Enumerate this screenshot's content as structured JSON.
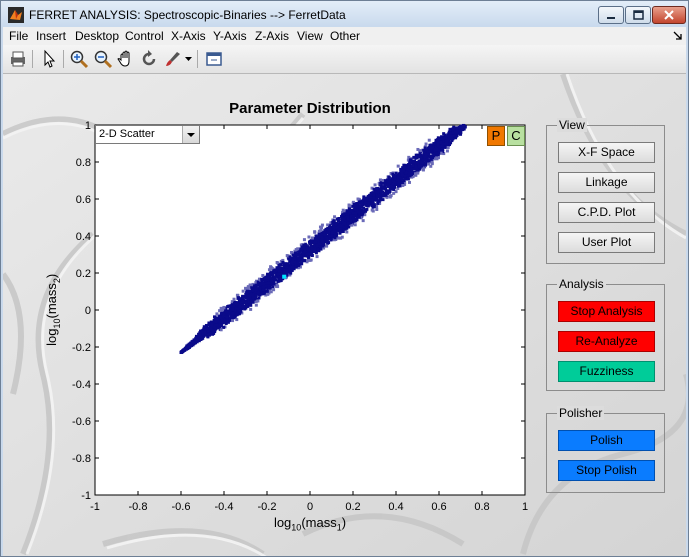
{
  "window": {
    "title": "FERRET ANALYSIS: Spectroscopic-Binaries --> FerretData"
  },
  "menu": [
    "File",
    "Insert",
    "Desktop",
    "Control",
    "X-Axis",
    "Y-Axis",
    "Z-Axis",
    "View",
    "Other"
  ],
  "toolbar": {
    "icons": [
      "print-icon",
      "pointer-icon",
      "zoom-in-icon",
      "zoom-out-icon",
      "pan-hand-icon",
      "rotate-icon",
      "brush-icon",
      "dock-icon"
    ]
  },
  "plot": {
    "type_selector_value": "2-D Scatter",
    "p_label": "P",
    "c_label": "C"
  },
  "view_panel": {
    "title": "View",
    "buttons": [
      "X-F Space",
      "Linkage",
      "C.P.D. Plot",
      "User Plot"
    ]
  },
  "analysis_panel": {
    "title": "Analysis",
    "buttons": [
      "Stop Analysis",
      "Re-Analyze",
      "Fuzziness"
    ]
  },
  "polisher_panel": {
    "title": "Polisher",
    "buttons": [
      "Polish",
      "Stop Polish"
    ]
  },
  "colors": {
    "points": "#0a0a8a",
    "highlight": "#00e5ff",
    "stop_analysis": "#ff0000",
    "re_analyze": "#ff0000",
    "fuzziness": "#00cc99",
    "polish": "#0a7cff",
    "p_button": "#f07800",
    "c_button": "#b8e0a0"
  },
  "chart_data": {
    "type": "scatter",
    "title": "Parameter Distribution",
    "xlabel_base": "log",
    "xlabel_sub": "10",
    "xlabel_arg": "(mass",
    "xlabel_idx": "1",
    "xlabel_end": ")",
    "ylabel_base": "log",
    "ylabel_sub": "10",
    "ylabel_arg": "(mass",
    "ylabel_idx": "2",
    "ylabel_end": ")",
    "xlim": [
      -1,
      1
    ],
    "ylim": [
      -1,
      1
    ],
    "xticks": [
      "-1",
      "-0.8",
      "-0.6",
      "-0.4",
      "-0.2",
      "0",
      "0.2",
      "0.4",
      "0.6",
      "0.8",
      "1"
    ],
    "yticks": [
      "-1",
      "-0.8",
      "-0.6",
      "-0.4",
      "-0.2",
      "0",
      "0.2",
      "0.4",
      "0.6",
      "0.8",
      "1"
    ],
    "band": {
      "x_start": -0.6,
      "y_start": -0.23,
      "x_end": 0.72,
      "y_end": 1.0,
      "half_width": 0.04
    },
    "highlight_point": {
      "x": -0.12,
      "y": 0.18
    },
    "grid": false
  }
}
